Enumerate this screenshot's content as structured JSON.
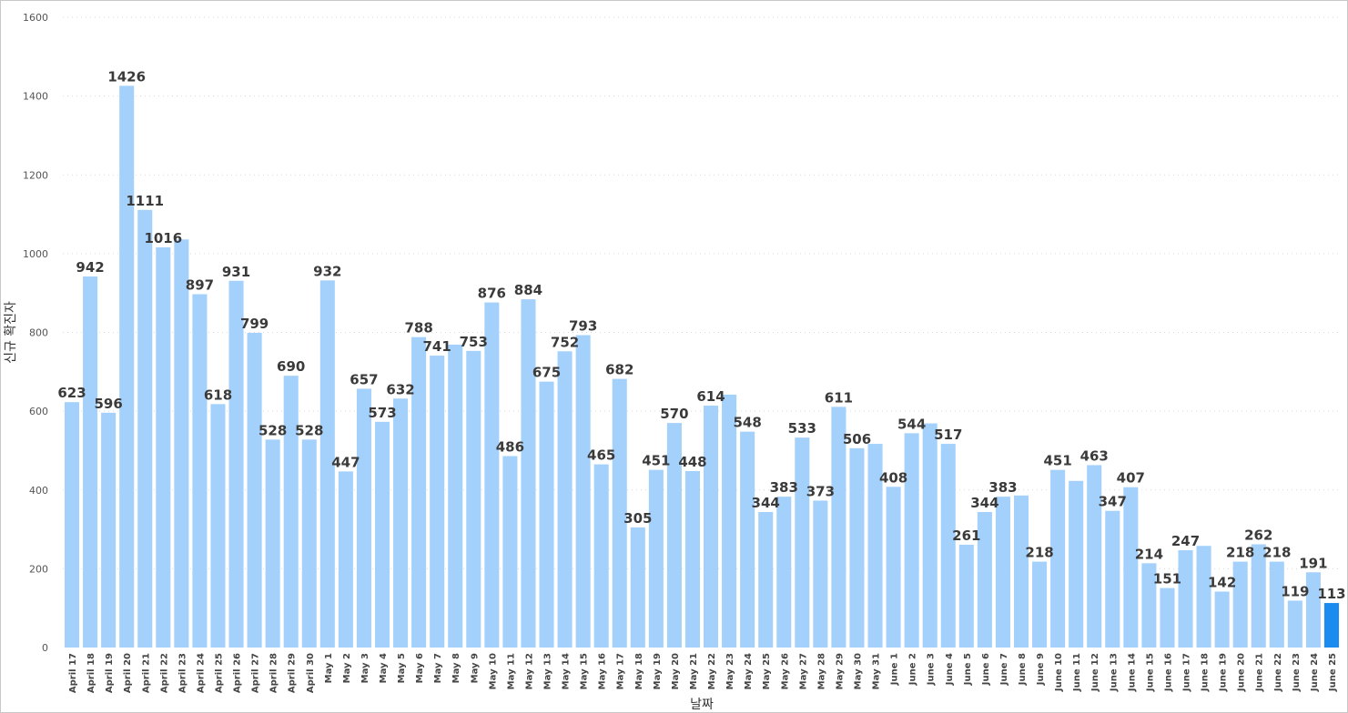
{
  "chart_data": {
    "type": "bar",
    "title": "",
    "xlabel": "날짜",
    "ylabel": "신규 확진자",
    "ylim": [
      0,
      1600
    ],
    "yticks": [
      0,
      200,
      400,
      600,
      800,
      1000,
      1200,
      1400,
      1600
    ],
    "grid": true,
    "legend": "none",
    "colors": {
      "bar": "#a3d1fb",
      "highlight": "#1a8cf0"
    },
    "highlight_index": 69,
    "categories": [
      "April 17",
      "April 18",
      "April 19",
      "April 20",
      "April 21",
      "April 22",
      "April 23",
      "April 24",
      "April 25",
      "April 26",
      "April 27",
      "April 28",
      "April 29",
      "April 30",
      "May 1",
      "May 2",
      "May 3",
      "May 4",
      "May 5",
      "May 6",
      "May 7",
      "May 8",
      "May 9",
      "May 10",
      "May 11",
      "May 12",
      "May 13",
      "May 14",
      "May 15",
      "May 16",
      "May 17",
      "May 18",
      "May 19",
      "May 20",
      "May 21",
      "May 22",
      "May 23",
      "May 24",
      "May 25",
      "May 26",
      "May 27",
      "May 28",
      "May 29",
      "May 30",
      "May 31",
      "June 1",
      "June 2",
      "June 3",
      "June 4",
      "June 5",
      "June 6",
      "June 7",
      "June 8",
      "June 9",
      "June 10",
      "June 11",
      "June 12",
      "June 13",
      "June 14",
      "June 15",
      "June 16",
      "June 17",
      "June 18",
      "June 19",
      "June 20",
      "June 21",
      "June 22",
      "June 23",
      "June 24",
      "June 25"
    ],
    "values": [
      623,
      942,
      596,
      1426,
      1111,
      1016,
      1036,
      897,
      618,
      931,
      799,
      528,
      690,
      528,
      932,
      447,
      657,
      573,
      632,
      788,
      741,
      769,
      753,
      876,
      486,
      884,
      675,
      752,
      793,
      465,
      682,
      305,
      451,
      570,
      448,
      614,
      642,
      548,
      344,
      383,
      533,
      373,
      611,
      506,
      517,
      408,
      544,
      569,
      517,
      261,
      344,
      383,
      386,
      218,
      451,
      423,
      463,
      347,
      407,
      214,
      151,
      247,
      258,
      142,
      218,
      262,
      218,
      119,
      191,
      113
    ],
    "data_labels": [
      "623",
      "942",
      "596",
      "1426",
      "1111",
      "1016",
      "",
      "897",
      "618",
      "931",
      "799",
      "528",
      "690",
      "528",
      "932",
      "447",
      "657",
      "573",
      "632",
      "788",
      "741",
      "",
      "753",
      "876",
      "486",
      "884",
      "675",
      "752",
      "793",
      "465",
      "682",
      "305",
      "451",
      "570",
      "448",
      "614",
      "",
      "548",
      "344",
      "383",
      "533",
      "373",
      "611",
      "506",
      "",
      "408",
      "544",
      "",
      "517",
      "261",
      "344",
      "383",
      "",
      "218",
      "451",
      "",
      "463",
      "347",
      "407",
      "214",
      "151",
      "247",
      "",
      "142",
      "218",
      "262",
      "218",
      "119",
      "191",
      "113"
    ]
  }
}
